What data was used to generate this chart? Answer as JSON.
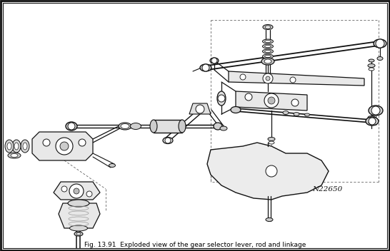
{
  "title": "Fig. 13.91  Exploded view of the gear selector lever, rod and linkage",
  "background_color": "#ffffff",
  "border_color": "#000000",
  "figure_width": 5.46,
  "figure_height": 3.52,
  "dpi": 100,
  "image_note": "N22650",
  "outer_border_lw": 2.0,
  "inner_border_lw": 0.8
}
